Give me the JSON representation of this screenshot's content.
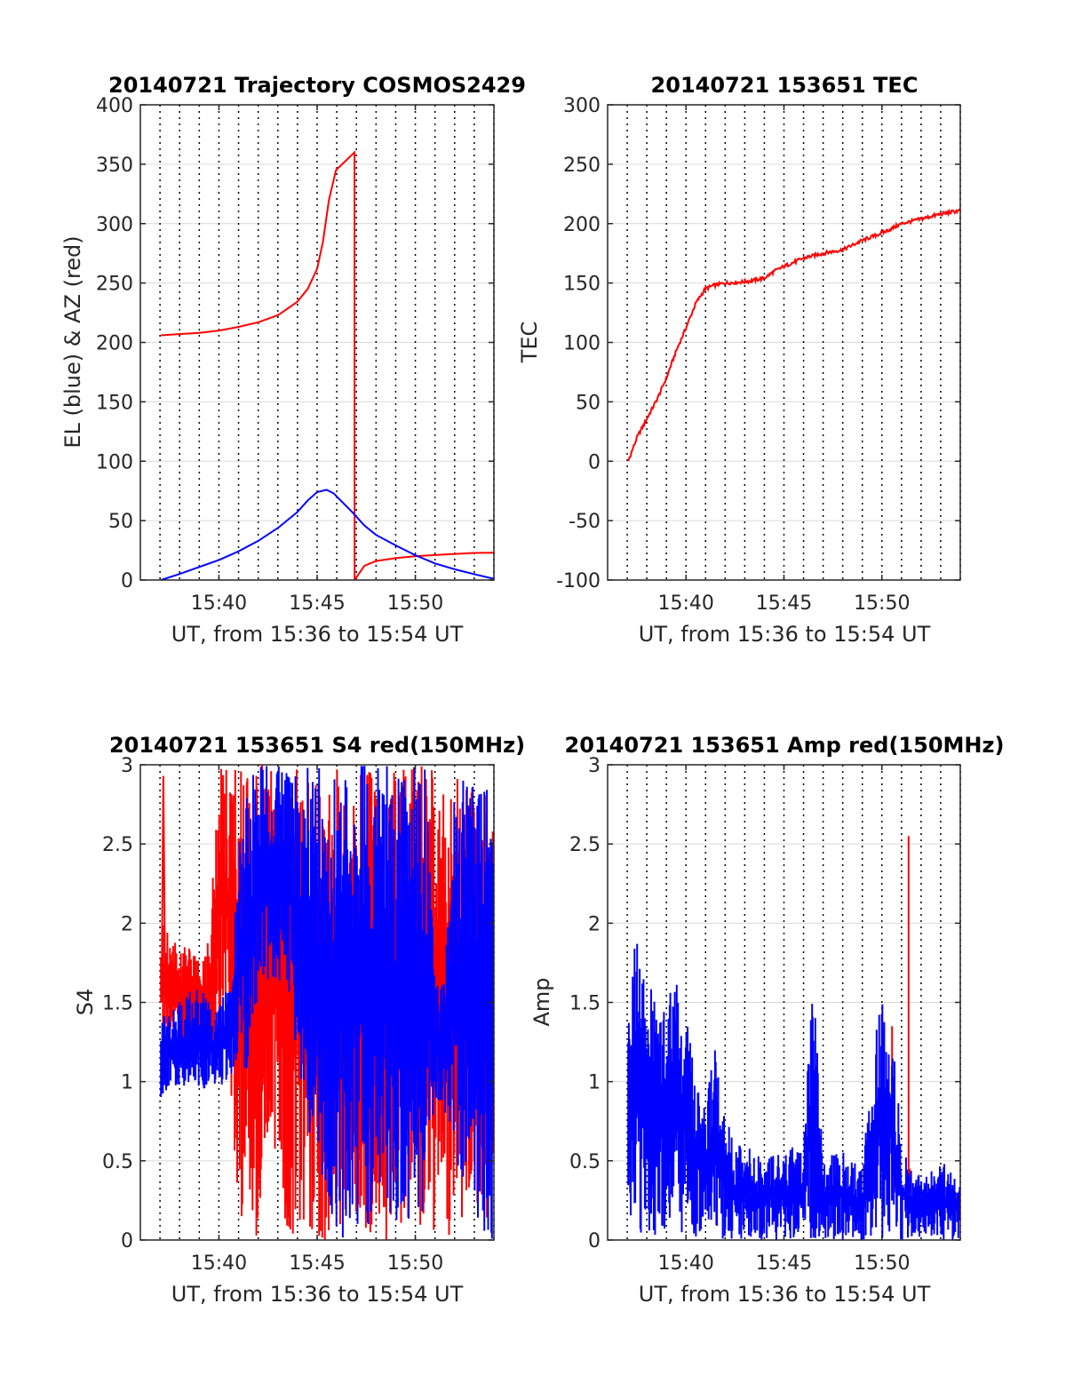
{
  "colors": {
    "red": "#ff0000",
    "blue": "#0000ff",
    "grid": "#d9d9d9",
    "axis": "#262626",
    "background": "#ffffff"
  },
  "chart_data": [
    {
      "type": "line",
      "title": "20140721 Trajectory COSMOS2429",
      "xlabel": "UT, from 15:36 to 15:54 UT",
      "ylabel": "EL (blue) & AZ (red)",
      "xlim": [
        15.6,
        15.9
      ],
      "ylim": [
        0,
        400
      ],
      "xticks": [
        "15:40",
        "15:45",
        "15:50"
      ],
      "yticks": [
        "0",
        "50",
        "100",
        "150",
        "200",
        "250",
        "300",
        "350",
        "400"
      ],
      "grid": true,
      "series": [
        {
          "color": "red",
          "kind": "line",
          "x": [
            15.6175,
            15.633,
            15.65,
            15.667,
            15.683,
            15.7,
            15.717,
            15.733,
            15.742,
            15.75,
            15.755,
            15.76,
            15.766,
            15.7817,
            15.7818,
            15.79,
            15.8,
            15.817,
            15.833,
            15.85,
            15.867,
            15.883,
            15.9
          ],
          "y": [
            206,
            207,
            208,
            210,
            213,
            217,
            223,
            234,
            245,
            262,
            285,
            320,
            345,
            360,
            0,
            12,
            16,
            18.5,
            20,
            21,
            22,
            22.8,
            23
          ]
        },
        {
          "color": "blue",
          "kind": "line",
          "x": [
            15.6175,
            15.633,
            15.65,
            15.667,
            15.683,
            15.7,
            15.717,
            15.733,
            15.742,
            15.75,
            15.758,
            15.764,
            15.77,
            15.78,
            15.79,
            15.8,
            15.817,
            15.833,
            15.85,
            15.867,
            15.883,
            15.9
          ],
          "y": [
            0,
            5,
            11,
            17,
            24,
            33,
            44,
            57,
            67,
            74,
            76,
            73,
            67,
            57,
            46,
            38,
            29,
            21,
            14,
            9,
            5,
            1
          ]
        }
      ]
    },
    {
      "type": "line",
      "title": "20140721 153651 TEC",
      "xlabel": "UT, from 15:36 to 15:54 UT",
      "ylabel": "TEC",
      "xlim": [
        15.6,
        15.9
      ],
      "ylim": [
        -100,
        300
      ],
      "xticks": [
        "15:40",
        "15:45",
        "15:50"
      ],
      "yticks": [
        "-100",
        "-50",
        "0",
        "50",
        "100",
        "150",
        "200",
        "250",
        "300"
      ],
      "grid": true,
      "series": [
        {
          "color": "red",
          "kind": "line",
          "x": [
            15.6175,
            15.625,
            15.633,
            15.642,
            15.65,
            15.658,
            15.667,
            15.675,
            15.683,
            15.69,
            15.7,
            15.717,
            15.733,
            15.742,
            15.75,
            15.767,
            15.775,
            15.783,
            15.8,
            15.817,
            15.833,
            15.842,
            15.85,
            15.867,
            15.883,
            15.9
          ],
          "y": [
            0,
            20,
            35,
            52,
            70,
            92,
            113,
            133,
            145,
            148,
            150,
            151,
            154,
            160,
            164,
            171,
            173,
            175,
            178,
            186,
            192,
            196,
            200,
            204,
            208,
            211
          ]
        }
      ]
    },
    {
      "type": "line",
      "title": "20140721 153651 S4 red(150MHz)",
      "xlabel": "UT, from 15:36 to 15:54 UT",
      "ylabel": "S4",
      "xlim": [
        15.6,
        15.9
      ],
      "ylim": [
        0,
        3
      ],
      "xticks": [
        "15:40",
        "15:45",
        "15:50"
      ],
      "yticks": [
        "0",
        "0.5",
        "1",
        "1.5",
        "2",
        "2.5",
        "3"
      ],
      "grid": true,
      "series": [
        {
          "color": "red",
          "kind": "band",
          "x": [
            15.6175,
            15.625,
            15.633,
            15.642,
            15.65,
            15.658,
            15.667,
            15.675,
            15.683,
            15.692,
            15.7,
            15.708,
            15.717,
            15.725,
            15.733,
            15.742,
            15.75,
            15.758,
            15.767,
            15.775,
            15.783,
            15.792,
            15.8,
            15.808,
            15.817,
            15.825,
            15.833,
            15.842,
            15.85,
            15.858,
            15.867,
            15.875,
            15.883,
            15.9
          ],
          "min": [
            1.3,
            1.25,
            1.25,
            1.2,
            1.2,
            1.2,
            1.2,
            1.2,
            0,
            0,
            0,
            0.6,
            0.5,
            0,
            0,
            0,
            0,
            0,
            0,
            0,
            0,
            0,
            0,
            0,
            0,
            0,
            0,
            0,
            0,
            0,
            0,
            0,
            0,
            0
          ],
          "max": [
            2.0,
            1.95,
            1.9,
            1.85,
            1.8,
            1.95,
            3.0,
            3.0,
            3.0,
            3.0,
            3.0,
            3.0,
            3.0,
            3.0,
            3.0,
            3.0,
            3.0,
            3.0,
            3.0,
            3.0,
            3.0,
            3.0,
            3.0,
            3.0,
            3.0,
            3.0,
            3.0,
            3.0,
            3.0,
            3.0,
            3.0,
            3.0,
            3.0,
            3.0
          ],
          "peak": {
            "x": 15.6195,
            "y": 2.93
          }
        },
        {
          "color": "blue",
          "kind": "band",
          "x": [
            15.6175,
            15.625,
            15.633,
            15.642,
            15.65,
            15.658,
            15.667,
            15.675,
            15.683,
            15.692,
            15.7,
            15.708,
            15.717,
            15.725,
            15.733,
            15.742,
            15.75,
            15.758,
            15.767,
            15.775,
            15.783,
            15.792,
            15.8,
            15.808,
            15.817,
            15.825,
            15.833,
            15.842,
            15.85,
            15.858,
            15.867,
            15.875,
            15.883,
            15.9
          ],
          "min": [
            0.9,
            0.95,
            0.95,
            0.95,
            0.9,
            0.95,
            0.95,
            1.0,
            1.0,
            1.1,
            1.55,
            1.5,
            1.6,
            1.6,
            1.0,
            0.7,
            0.5,
            0.3,
            0,
            0,
            0,
            0,
            0.3,
            0.2,
            0,
            0,
            0,
            0.2,
            0.9,
            0.8,
            0.4,
            0.3,
            0,
            0
          ],
          "max": [
            1.4,
            1.45,
            1.5,
            1.6,
            1.65,
            1.5,
            1.5,
            1.6,
            2.5,
            2.9,
            3.0,
            3.0,
            3.0,
            3.0,
            3.0,
            3.0,
            3.0,
            3.0,
            3.0,
            3.0,
            3.0,
            3.0,
            3.0,
            3.0,
            3.0,
            3.0,
            3.0,
            3.0,
            1.6,
            1.7,
            3.0,
            3.0,
            3.0,
            3.0
          ]
        }
      ]
    },
    {
      "type": "line",
      "title": "20140721 153651 Amp red(150MHz)",
      "xlabel": "UT, from 15:36 to 15:54 UT",
      "ylabel": "Amp",
      "xlim": [
        15.6,
        15.9
      ],
      "ylim": [
        0,
        3
      ],
      "xticks": [
        "15:40",
        "15:45",
        "15:50"
      ],
      "yticks": [
        "0",
        "0.5",
        "1",
        "1.5",
        "2",
        "2.5",
        "3"
      ],
      "grid": true,
      "series": [
        {
          "color": "red",
          "kind": "spikes",
          "x": [
            15.842,
            15.856,
            15.857
          ],
          "y": [
            1.35,
            2.55,
            0.45
          ]
        },
        {
          "color": "blue",
          "kind": "band",
          "x": [
            15.6175,
            15.625,
            15.633,
            15.642,
            15.65,
            15.658,
            15.667,
            15.675,
            15.683,
            15.692,
            15.7,
            15.706,
            15.708,
            15.717,
            15.725,
            15.733,
            15.742,
            15.75,
            15.758,
            15.767,
            15.775,
            15.779,
            15.783,
            15.792,
            15.8,
            15.808,
            15.817,
            15.825,
            15.833,
            15.842,
            15.85,
            15.858,
            15.867,
            15.875,
            15.883,
            15.9
          ],
          "min": [
            0,
            0,
            0,
            0,
            0,
            0,
            0,
            0,
            0,
            0,
            0,
            0,
            0,
            0,
            0,
            0,
            0,
            0,
            0,
            0,
            0,
            0,
            0,
            0,
            0,
            0,
            0,
            0,
            0,
            0,
            0,
            0,
            0,
            0,
            0,
            0
          ],
          "max": [
            1.5,
            2.0,
            1.75,
            1.6,
            1.45,
            1.8,
            1.45,
            1.0,
            0.85,
            1.25,
            0.75,
            0.7,
            0.6,
            0.6,
            0.55,
            0.5,
            0.6,
            0.55,
            0.6,
            0.65,
            1.9,
            1.1,
            0.5,
            0.55,
            0.6,
            0.5,
            0.45,
            1.2,
            1.5,
            1.45,
            0.6,
            0.45,
            0.4,
            0.45,
            0.5,
            0.45
          ]
        }
      ]
    }
  ]
}
